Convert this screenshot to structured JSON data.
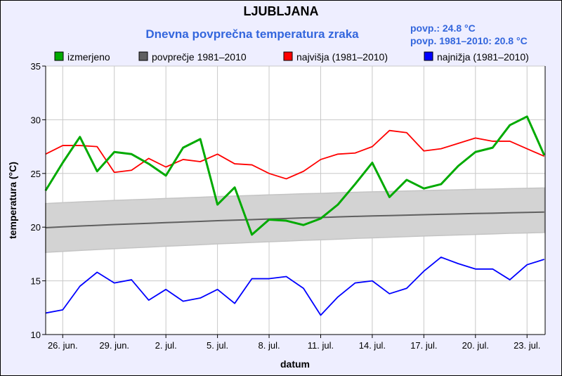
{
  "chart_data": {
    "type": "line",
    "title": "LJUBLJANA",
    "subtitle": "Dnevna povprečna temperatura zraka",
    "stats": [
      "povp.: 24.8 °C",
      "povp. 1981–2010: 20.8 °C"
    ],
    "xlabel": "datum",
    "ylabel": "temperatura (°C)",
    "ylim": [
      10,
      35
    ],
    "yticks": [
      10,
      15,
      20,
      25,
      30,
      35
    ],
    "grid": true,
    "legend_placement": "top",
    "x": [
      "25. jun.",
      "26. jun.",
      "27. jun.",
      "28. jun.",
      "29. jun.",
      "30. jun.",
      "1. jul.",
      "2. jul.",
      "3. jul.",
      "4. jul.",
      "5. jul.",
      "6. jul.",
      "7. jul.",
      "8. jul.",
      "9. jul.",
      "10. jul.",
      "11. jul.",
      "12. jul.",
      "13. jul.",
      "14. jul.",
      "15. jul.",
      "16. jul.",
      "17. jul.",
      "18. jul.",
      "19. jul.",
      "20. jul.",
      "21. jul.",
      "22. jul.",
      "23. jul.",
      "24. jul."
    ],
    "xtick_labels": [
      "26. jun.",
      "29. jun.",
      "2. jul.",
      "5. jul.",
      "8. jul.",
      "11. jul.",
      "14. jul.",
      "17. jul.",
      "20. jul.",
      "23. jul."
    ],
    "band_1981_2010": {
      "upper": [
        22.2,
        22.28,
        22.35,
        22.42,
        22.49,
        22.55,
        22.61,
        22.67,
        22.73,
        22.79,
        22.85,
        22.9,
        22.95,
        23.01,
        23.06,
        23.11,
        23.15,
        23.2,
        23.25,
        23.29,
        23.33,
        23.37,
        23.41,
        23.45,
        23.48,
        23.52,
        23.55,
        23.59,
        23.62,
        23.65
      ],
      "lower": [
        17.65,
        17.74,
        17.83,
        17.91,
        17.99,
        18.07,
        18.14,
        18.22,
        18.29,
        18.36,
        18.44,
        18.5,
        18.57,
        18.64,
        18.7,
        18.77,
        18.82,
        18.88,
        18.95,
        19.0,
        19.06,
        19.11,
        19.17,
        19.22,
        19.27,
        19.32,
        19.37,
        19.42,
        19.46,
        19.5
      ],
      "color": "#d3d3d3"
    },
    "series": [
      {
        "name": "izmerjeno",
        "color": "#00aa00",
        "values": [
          23.4,
          26.0,
          28.4,
          25.2,
          27.0,
          26.8,
          25.9,
          24.8,
          27.4,
          28.2,
          22.1,
          23.7,
          19.3,
          20.7,
          20.6,
          20.2,
          20.8,
          22.1,
          24.0,
          26.0,
          22.8,
          24.4,
          23.6,
          24.0,
          25.7,
          27.0,
          27.4,
          29.5,
          30.3,
          26.7
        ]
      },
      {
        "name": "povprečje 1981–2010",
        "color": "#606060",
        "values": [
          19.95,
          20.03,
          20.1,
          20.17,
          20.24,
          20.3,
          20.36,
          20.42,
          20.48,
          20.54,
          20.6,
          20.65,
          20.7,
          20.76,
          20.81,
          20.86,
          20.9,
          20.95,
          21.0,
          21.04,
          21.08,
          21.12,
          21.16,
          21.2,
          21.23,
          21.27,
          21.3,
          21.34,
          21.37,
          21.4
        ]
      },
      {
        "name": "najvišja (1981–2010)",
        "color": "#ff0000",
        "values": [
          26.8,
          27.6,
          27.6,
          27.5,
          25.1,
          25.3,
          26.4,
          25.6,
          26.3,
          26.1,
          26.8,
          25.9,
          25.8,
          25.0,
          24.5,
          25.2,
          26.3,
          26.8,
          26.9,
          27.5,
          29.0,
          28.8,
          27.1,
          27.3,
          27.8,
          28.3,
          28.0,
          28.0,
          27.3,
          26.6
        ]
      },
      {
        "name": "najnižja (1981–2010)",
        "color": "#0000ff",
        "values": [
          12.0,
          12.3,
          14.5,
          15.8,
          14.8,
          15.1,
          13.2,
          14.2,
          13.1,
          13.4,
          14.2,
          12.9,
          15.2,
          15.2,
          15.4,
          14.3,
          11.8,
          13.5,
          14.8,
          15.0,
          13.8,
          14.3,
          15.9,
          17.2,
          16.6,
          16.1,
          16.1,
          15.1,
          16.5,
          17.0
        ]
      }
    ]
  }
}
